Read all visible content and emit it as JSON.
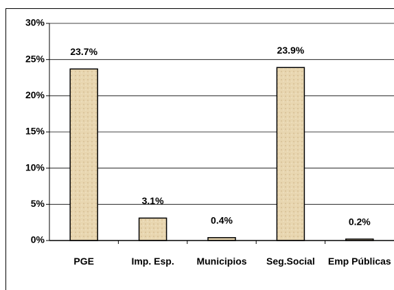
{
  "chart_data": {
    "type": "bar",
    "categories": [
      "PGE",
      "Imp. Esp.",
      "Municipios",
      "Seg.Social",
      "Emp Públicas"
    ],
    "values": [
      23.7,
      3.1,
      0.4,
      23.9,
      0.2
    ],
    "value_labels": [
      "23.7%",
      "3.1%",
      "0.4%",
      "23.9%",
      "0.2%"
    ],
    "color": "#e8d6b0",
    "ylim": [
      0,
      30
    ],
    "yticks": [
      {
        "value": 0,
        "label": "0%"
      },
      {
        "value": 5,
        "label": "5%"
      },
      {
        "value": 10,
        "label": "10%"
      },
      {
        "value": 15,
        "label": "15%"
      },
      {
        "value": 20,
        "label": "20%"
      },
      {
        "value": 25,
        "label": "25%"
      },
      {
        "value": 30,
        "label": "30%"
      }
    ],
    "grid": true
  }
}
